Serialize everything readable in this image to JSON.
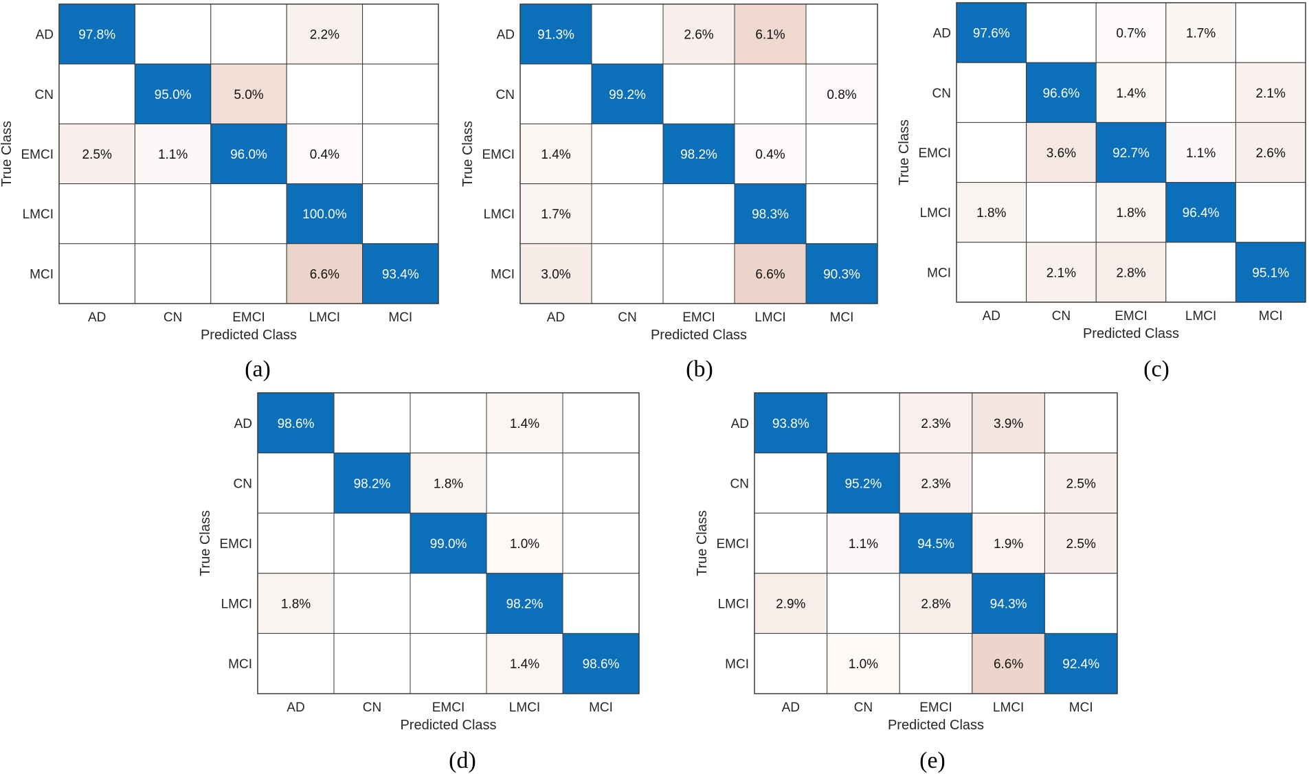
{
  "colors": {
    "diagonal": "#0b6fba",
    "off_diagonal_max": "#edd5cc",
    "grid": "#3a3a3a",
    "empty": "#ffffff"
  },
  "chart_data": [
    {
      "type": "heatmap",
      "panel_label": "(a)",
      "xlabel": "Predicted Class",
      "ylabel": "True Class",
      "classes": [
        "AD",
        "CN",
        "EMCI",
        "LMCI",
        "MCI"
      ],
      "values": [
        [
          "97.8%",
          "",
          "",
          "2.2%",
          ""
        ],
        [
          "",
          "95.0%",
          "5.0%",
          "",
          ""
        ],
        [
          "2.5%",
          "1.1%",
          "96.0%",
          "0.4%",
          ""
        ],
        [
          "",
          "",
          "",
          "100.0%",
          ""
        ],
        [
          "",
          "",
          "",
          "6.6%",
          "93.4%"
        ]
      ]
    },
    {
      "type": "heatmap",
      "panel_label": "(b)",
      "xlabel": "Predicted Class",
      "ylabel": "True Class",
      "classes": [
        "AD",
        "CN",
        "EMCI",
        "LMCI",
        "MCI"
      ],
      "values": [
        [
          "91.3%",
          "",
          "2.6%",
          "6.1%",
          ""
        ],
        [
          "",
          "99.2%",
          "",
          "",
          "0.8%"
        ],
        [
          "1.4%",
          "",
          "98.2%",
          "0.4%",
          ""
        ],
        [
          "1.7%",
          "",
          "",
          "98.3%",
          ""
        ],
        [
          "3.0%",
          "",
          "",
          "6.6%",
          "90.3%"
        ]
      ]
    },
    {
      "type": "heatmap",
      "panel_label": "(c)",
      "xlabel": "Predicted Class",
      "ylabel": "True Class",
      "classes": [
        "AD",
        "CN",
        "EMCI",
        "LMCI",
        "MCI"
      ],
      "values": [
        [
          "97.6%",
          "",
          "0.7%",
          "1.7%",
          ""
        ],
        [
          "",
          "96.6%",
          "1.4%",
          "",
          "2.1%"
        ],
        [
          "",
          "3.6%",
          "92.7%",
          "1.1%",
          "2.6%"
        ],
        [
          "1.8%",
          "",
          "1.8%",
          "96.4%",
          ""
        ],
        [
          "",
          "2.1%",
          "2.8%",
          "",
          "95.1%"
        ]
      ]
    },
    {
      "type": "heatmap",
      "panel_label": "(d)",
      "xlabel": "Predicted Class",
      "ylabel": "True Class",
      "classes": [
        "AD",
        "CN",
        "EMCI",
        "LMCI",
        "MCI"
      ],
      "values": [
        [
          "98.6%",
          "",
          "",
          "1.4%",
          ""
        ],
        [
          "",
          "98.2%",
          "1.8%",
          "",
          ""
        ],
        [
          "",
          "",
          "99.0%",
          "1.0%",
          ""
        ],
        [
          "1.8%",
          "",
          "",
          "98.2%",
          ""
        ],
        [
          "",
          "",
          "",
          "1.4%",
          "98.6%"
        ]
      ]
    },
    {
      "type": "heatmap",
      "panel_label": "(e)",
      "xlabel": "Predicted Class",
      "ylabel": "True Class",
      "classes": [
        "AD",
        "CN",
        "EMCI",
        "LMCI",
        "MCI"
      ],
      "values": [
        [
          "93.8%",
          "",
          "2.3%",
          "3.9%",
          ""
        ],
        [
          "",
          "95.2%",
          "2.3%",
          "",
          "2.5%"
        ],
        [
          "",
          "1.1%",
          "94.5%",
          "1.9%",
          "2.5%"
        ],
        [
          "2.9%",
          "",
          "2.8%",
          "94.3%",
          ""
        ],
        [
          "",
          "1.0%",
          "",
          "6.6%",
          "92.4%"
        ]
      ]
    }
  ]
}
